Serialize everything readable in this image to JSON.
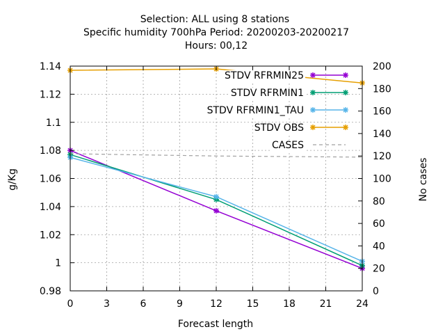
{
  "chart_data": {
    "type": "line",
    "title_lines": [
      "Selection: ALL using     8 stations",
      "Specific humidity 700hPa   Period: 20200203-20200217",
      "Hours:  00,12"
    ],
    "xlabel": "Forecast length",
    "ylabel": "g/Kg",
    "y2label": "No cases",
    "xlim": [
      0,
      24
    ],
    "ylim": [
      0.98,
      1.14
    ],
    "y2lim": [
      0,
      200
    ],
    "xticks": [
      "0",
      "3",
      "6",
      "9",
      "12",
      "15",
      "18",
      "21",
      "24"
    ],
    "yticks": [
      "0.98",
      "1",
      "1.02",
      "1.04",
      "1.06",
      "1.08",
      "1.1",
      "1.12",
      "1.14"
    ],
    "y2ticks": [
      "0",
      "20",
      "40",
      "60",
      "80",
      "100",
      "120",
      "140",
      "160",
      "180",
      "200"
    ],
    "grid": true,
    "legend_position": "top-right",
    "series": [
      {
        "name": "STDV RFRMIN25",
        "color": "#9400d3",
        "axis": "y",
        "x": [
          0,
          12,
          24
        ],
        "values": [
          1.08,
          1.037,
          0.996
        ]
      },
      {
        "name": "STDV RFRMIN1",
        "color": "#009e73",
        "axis": "y",
        "x": [
          0,
          12,
          24
        ],
        "values": [
          1.077,
          1.045,
          0.998
        ]
      },
      {
        "name": "STDV RFRMIN1_TAU",
        "color": "#56b4e9",
        "axis": "y",
        "x": [
          0,
          12,
          24
        ],
        "values": [
          1.075,
          1.047,
          1.001
        ]
      },
      {
        "name": "STDV OBS",
        "color": "#e69f00",
        "axis": "y",
        "x": [
          0,
          12,
          24
        ],
        "values": [
          1.137,
          1.138,
          1.128
        ]
      },
      {
        "name": "CASES",
        "color": "#a0a0a0",
        "axis": "y2",
        "dashed": true,
        "x": [
          0,
          12,
          24
        ],
        "values": [
          122,
          120,
          119
        ]
      }
    ]
  }
}
